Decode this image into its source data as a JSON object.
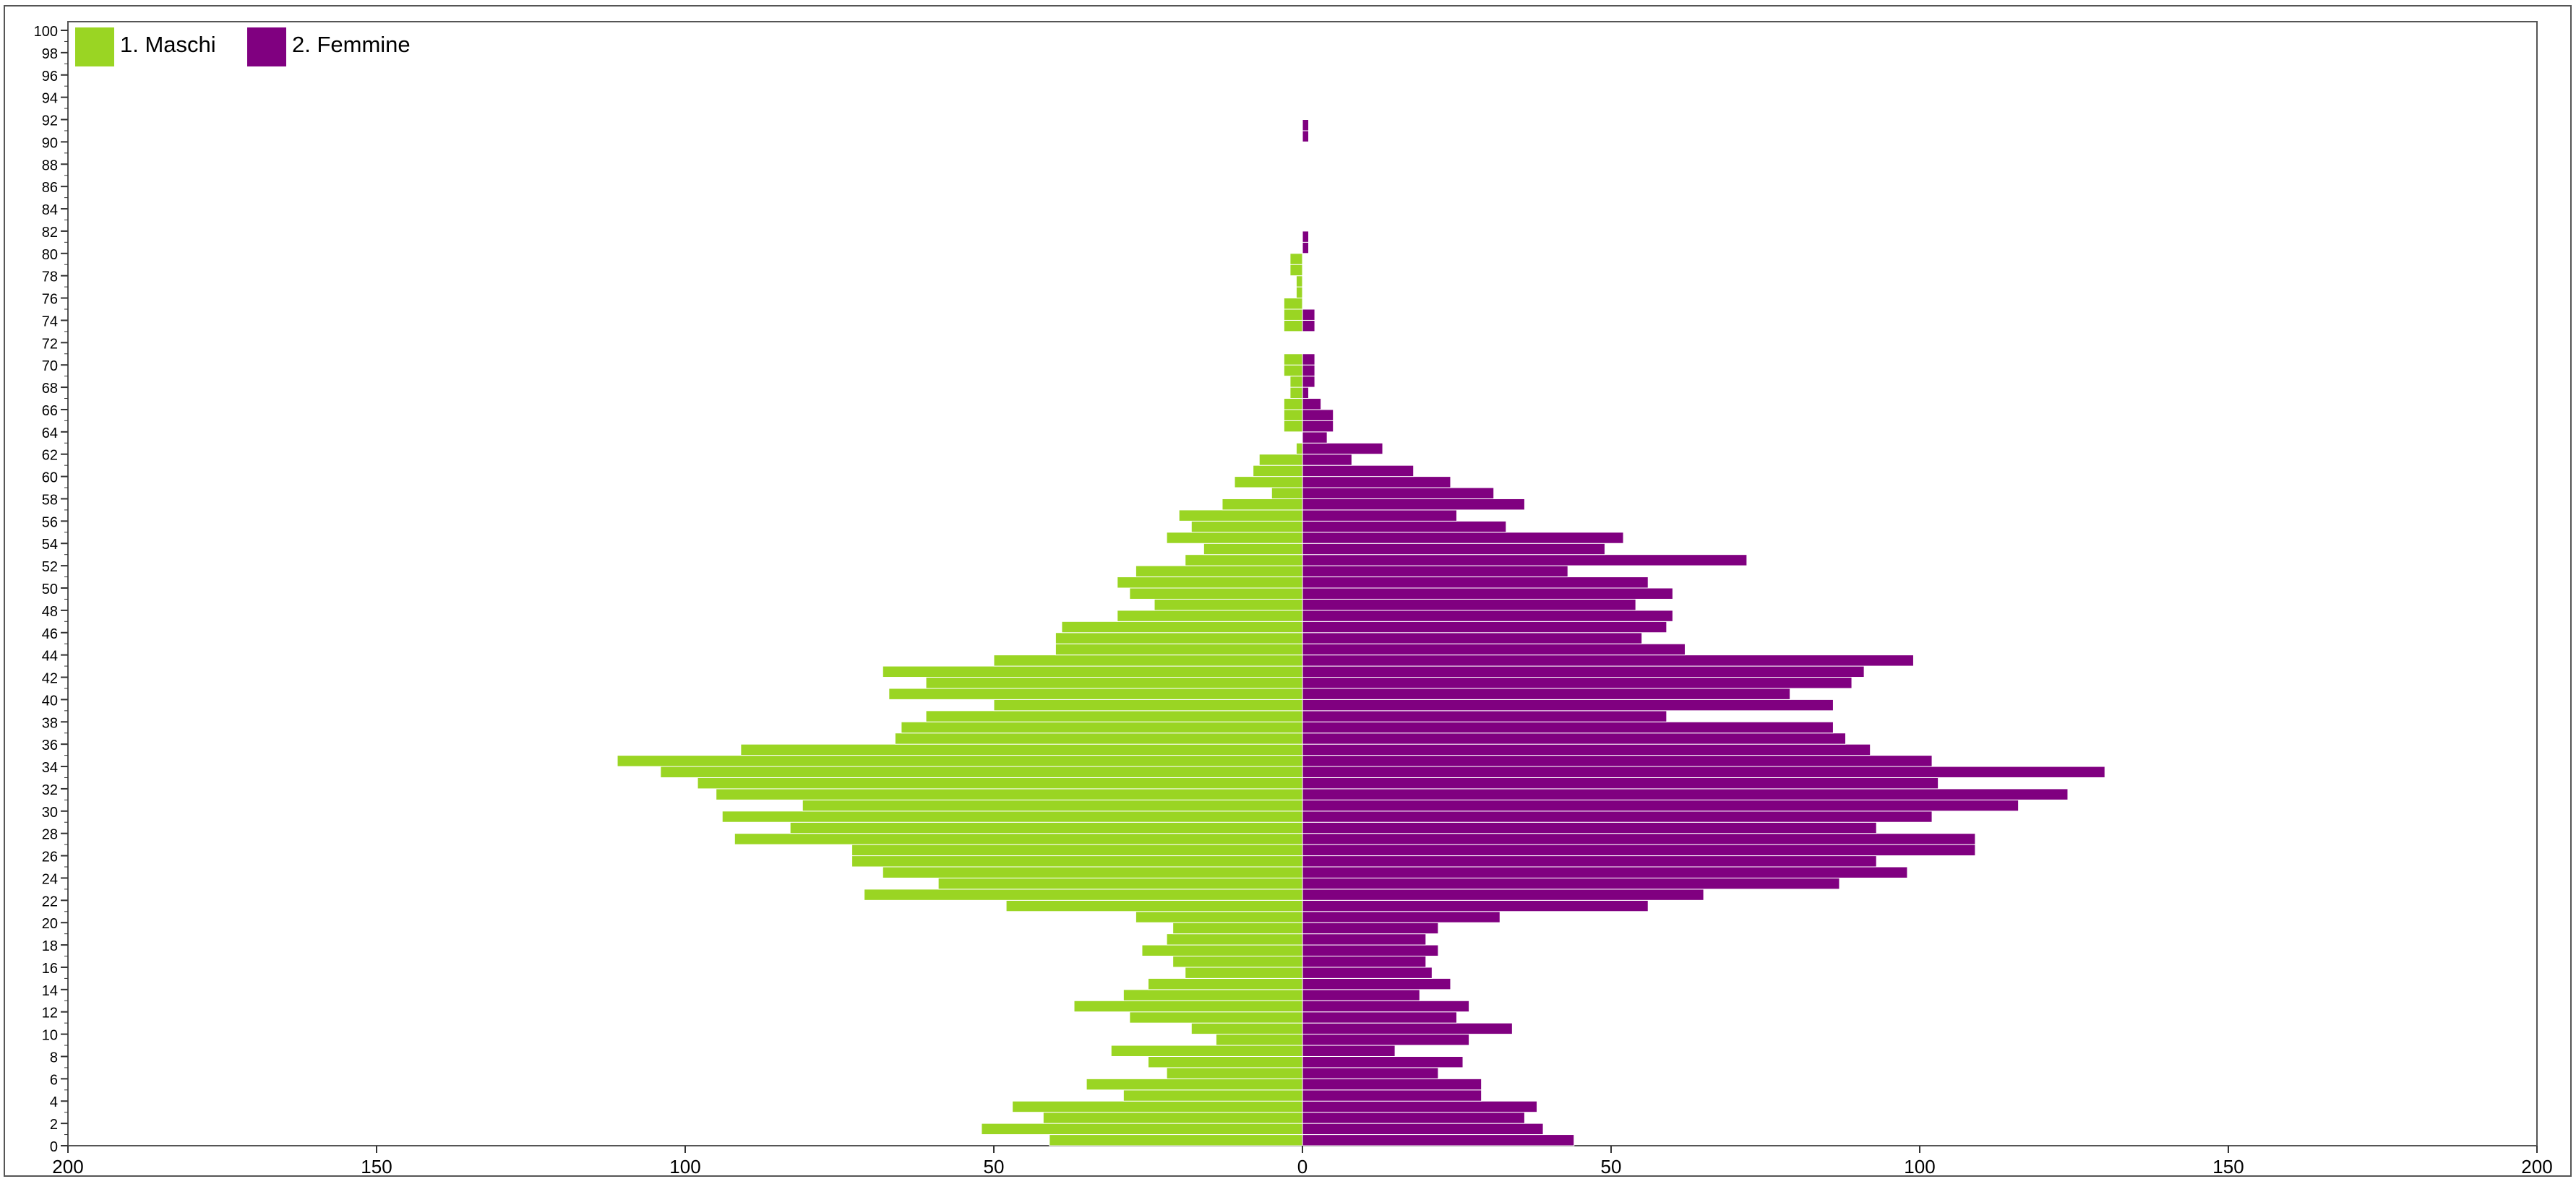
{
  "chart_data": {
    "type": "bar",
    "orientation": "horizontal-population-pyramid",
    "title": "",
    "xlabel": "",
    "ylabel": "",
    "xlim": [
      -200,
      200
    ],
    "ylim": [
      0,
      100
    ],
    "x_ticks": [
      -200,
      -150,
      -100,
      -50,
      0,
      50,
      100,
      150,
      200
    ],
    "x_tick_labels": [
      "200",
      "150",
      "100",
      "50",
      "0",
      "50",
      "100",
      "150",
      "200"
    ],
    "y_ticks": [
      0,
      2,
      4,
      6,
      8,
      10,
      12,
      14,
      16,
      18,
      20,
      22,
      24,
      26,
      28,
      30,
      32,
      34,
      36,
      38,
      40,
      42,
      44,
      46,
      48,
      50,
      52,
      54,
      56,
      58,
      60,
      62,
      64,
      66,
      68,
      70,
      72,
      74,
      76,
      78,
      80,
      82,
      84,
      86,
      88,
      90,
      92,
      94,
      96,
      98,
      100
    ],
    "grid": false,
    "legend_position": "top-left",
    "ages": [
      0,
      1,
      2,
      3,
      4,
      5,
      6,
      7,
      8,
      9,
      10,
      11,
      12,
      13,
      14,
      15,
      16,
      17,
      18,
      19,
      20,
      21,
      22,
      23,
      24,
      25,
      26,
      27,
      28,
      29,
      30,
      31,
      32,
      33,
      34,
      35,
      36,
      37,
      38,
      39,
      40,
      41,
      42,
      43,
      44,
      45,
      46,
      47,
      48,
      49,
      50,
      51,
      52,
      53,
      54,
      55,
      56,
      57,
      58,
      59,
      60,
      61,
      62,
      63,
      64,
      65,
      66,
      67,
      68,
      69,
      70,
      71,
      72,
      73,
      74,
      75,
      76,
      77,
      78,
      79,
      80,
      81,
      82,
      83,
      84,
      85,
      86,
      87,
      88,
      89,
      90,
      91,
      92,
      93,
      94,
      95,
      96,
      97,
      98,
      99
    ],
    "series": [
      {
        "name": "1. Maschi",
        "color": "#9ad523",
        "side": "left",
        "values": [
          41,
          52,
          42,
          47,
          29,
          35,
          22,
          25,
          31,
          14,
          18,
          28,
          37,
          29,
          25,
          19,
          21,
          26,
          22,
          21,
          27,
          48,
          71,
          59,
          68,
          73,
          73,
          92,
          83,
          94,
          81,
          95,
          98,
          104,
          111,
          91,
          66,
          65,
          61,
          50,
          67,
          61,
          68,
          50,
          40,
          40,
          39,
          30,
          24,
          28,
          30,
          27,
          19,
          16,
          22,
          18,
          20,
          13,
          5,
          11,
          8,
          7,
          1,
          0,
          3,
          3,
          3,
          2,
          2,
          3,
          3,
          0,
          0,
          3,
          3,
          3,
          1,
          1,
          2,
          2,
          0,
          0,
          0,
          0,
          0,
          0,
          0,
          0,
          0,
          0,
          0,
          0,
          0,
          0,
          0,
          0,
          0,
          0,
          0,
          0
        ]
      },
      {
        "name": "2. Femmine",
        "color": "#800080",
        "side": "right",
        "values": [
          44,
          39,
          36,
          38,
          29,
          29,
          22,
          26,
          15,
          27,
          34,
          25,
          27,
          19,
          24,
          21,
          20,
          22,
          20,
          22,
          32,
          56,
          65,
          87,
          98,
          93,
          109,
          109,
          93,
          102,
          116,
          124,
          103,
          130,
          102,
          92,
          88,
          86,
          59,
          86,
          79,
          89,
          91,
          99,
          62,
          55,
          59,
          60,
          54,
          60,
          56,
          43,
          72,
          49,
          52,
          33,
          25,
          36,
          31,
          24,
          18,
          8,
          13,
          4,
          5,
          5,
          3,
          1,
          2,
          2,
          2,
          0,
          0,
          2,
          2,
          0,
          0,
          0,
          0,
          0,
          1,
          1,
          0,
          0,
          0,
          0,
          0,
          0,
          0,
          0,
          1,
          1,
          0,
          0,
          0,
          0,
          0,
          0,
          0,
          0
        ]
      }
    ]
  }
}
